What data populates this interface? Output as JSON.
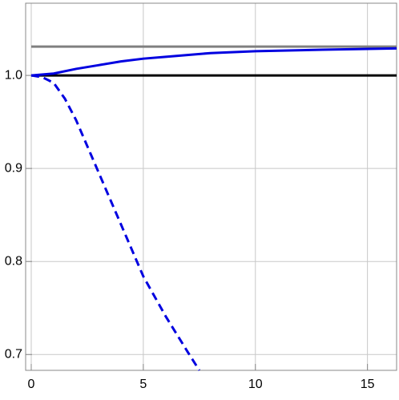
{
  "chart_data": {
    "type": "line",
    "xlim": [
      -0.25,
      16.3
    ],
    "ylim": [
      0.683,
      1.0776
    ],
    "xticks": [
      0,
      5,
      10,
      15
    ],
    "yticks": [
      0.7,
      0.8,
      0.9,
      {
        "value": 1.0,
        "label": "1.0"
      }
    ],
    "grid": true,
    "series": [
      {
        "color": "#808080",
        "dash": false,
        "x": [
          0,
          16.3
        ],
        "values": [
          1.031,
          1.031
        ]
      },
      {
        "color": "#000000",
        "dash": false,
        "x": [
          0,
          16.3
        ],
        "values": [
          1.0,
          1.0
        ]
      },
      {
        "color": "#0000e0",
        "dash": false,
        "x": [
          0,
          1,
          2,
          3,
          4,
          5,
          6,
          8,
          10,
          13,
          16.3
        ],
        "values": [
          1.0,
          1.002,
          1.007,
          1.011,
          1.015,
          1.018,
          1.02,
          1.024,
          1.026,
          1.0276,
          1.029
        ]
      },
      {
        "color": "#0000e0",
        "dash": true,
        "x": [
          0,
          0.5,
          1,
          1.5,
          2,
          3,
          4,
          5,
          6,
          7,
          7.5
        ],
        "values": [
          1.0,
          0.998,
          0.992,
          0.975,
          0.952,
          0.896,
          0.84,
          0.784,
          0.741,
          0.702,
          0.683
        ]
      }
    ]
  }
}
